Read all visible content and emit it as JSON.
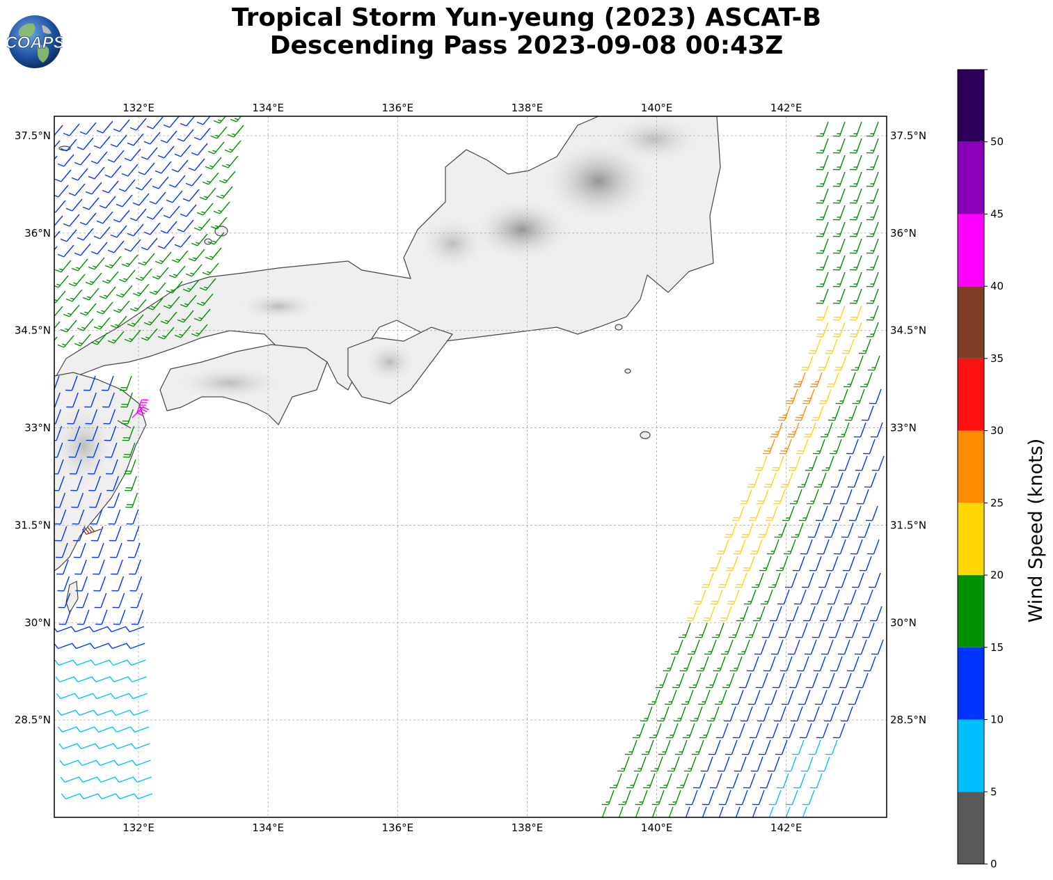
{
  "title": {
    "line1": "Tropical Storm Yun-yeung (2023) ASCAT-B",
    "line2": "Descending Pass 2023-09-08 00:43Z"
  },
  "logo": {
    "text": "COAPS",
    "icon": "globe-logo"
  },
  "map": {
    "lon_range": [
      130.7,
      143.55
    ],
    "lat_range": [
      27.0,
      37.8
    ],
    "lon_ticks": [
      "132°E",
      "134°E",
      "136°E",
      "138°E",
      "140°E",
      "142°E"
    ],
    "lon_tick_values": [
      132,
      134,
      136,
      138,
      140,
      142
    ],
    "lat_ticks": [
      "37.5°N",
      "36°N",
      "34.5°N",
      "33°N",
      "31.5°N",
      "30°N",
      "28.5°N"
    ],
    "lat_tick_values": [
      37.5,
      36,
      34.5,
      33,
      31.5,
      30,
      28.5
    ],
    "gridlines": true
  },
  "colorbar": {
    "label": "Wind Speed (knots)",
    "ticks": [
      "0",
      "5",
      "10",
      "15",
      "20",
      "25",
      "30",
      "35",
      "40",
      "45",
      "50"
    ],
    "bins": [
      {
        "min": 0,
        "max": 5,
        "color": "#595959"
      },
      {
        "min": 5,
        "max": 10,
        "color": "#00bfff"
      },
      {
        "min": 10,
        "max": 15,
        "color": "#0033ff"
      },
      {
        "min": 15,
        "max": 20,
        "color": "#009100"
      },
      {
        "min": 20,
        "max": 25,
        "color": "#ffd700"
      },
      {
        "min": 25,
        "max": 30,
        "color": "#ff8c00"
      },
      {
        "min": 30,
        "max": 35,
        "color": "#ff1010"
      },
      {
        "min": 35,
        "max": 40,
        "color": "#7f3f26"
      },
      {
        "min": 40,
        "max": 45,
        "color": "#ff00ff"
      },
      {
        "min": 45,
        "max": 50,
        "color": "#8a00b8"
      },
      {
        "min": 50,
        "max": 55,
        "color": "#2d005c"
      }
    ]
  }
}
